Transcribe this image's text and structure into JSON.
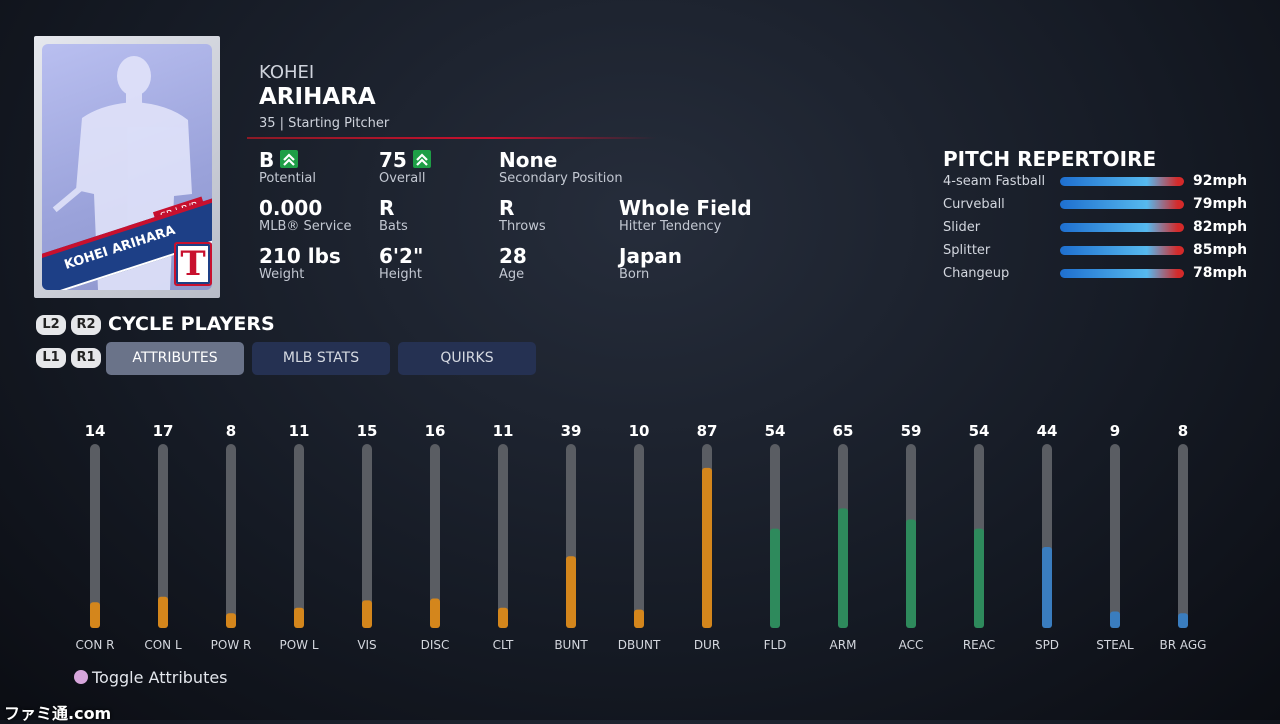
{
  "player": {
    "first_name": "KOHEI",
    "last_name": "ARIHARA",
    "subtitle": "35 | Starting Pitcher"
  },
  "card": {
    "position": "SP | R/R",
    "name": "KOHEI ARIHARA",
    "logo": "T"
  },
  "info": [
    {
      "value": "B",
      "label": "Potential",
      "upgrade": true
    },
    {
      "value": "75",
      "label": "Overall",
      "upgrade": true
    },
    {
      "value": "None",
      "label": "Secondary Position"
    },
    {
      "value": "0.000",
      "label": "MLB® Service"
    },
    {
      "value": "R",
      "label": "Bats"
    },
    {
      "value": "R",
      "label": "Throws"
    },
    {
      "value": "Whole Field",
      "label": "Hitter Tendency"
    },
    {
      "value": "210 lbs",
      "label": "Weight"
    },
    {
      "value": "6'2\"",
      "label": "Height"
    },
    {
      "value": "28",
      "label": "Age"
    },
    {
      "value": "Japan",
      "label": "Born"
    }
  ],
  "pitch_repertoire": {
    "title": "PITCH REPERTOIRE",
    "pitches": [
      {
        "name": "4-seam Fastball",
        "speed": "92mph"
      },
      {
        "name": "Curveball",
        "speed": "79mph"
      },
      {
        "name": "Slider",
        "speed": "82mph"
      },
      {
        "name": "Splitter",
        "speed": "85mph"
      },
      {
        "name": "Changeup",
        "speed": "78mph"
      }
    ]
  },
  "cycle": {
    "buttons": [
      "L2",
      "R2"
    ],
    "label": "CYCLE PLAYERS"
  },
  "tabs": {
    "buttons": [
      "L1",
      "R1"
    ],
    "items": [
      "ATTRIBUTES",
      "MLB STATS",
      "QUIRKS"
    ],
    "active": 0
  },
  "attributes": {
    "max": 100,
    "items": [
      {
        "name": "CON R",
        "value": 14,
        "color": "#d4861c"
      },
      {
        "name": "CON L",
        "value": 17,
        "color": "#d4861c"
      },
      {
        "name": "POW R",
        "value": 8,
        "color": "#d4861c"
      },
      {
        "name": "POW L",
        "value": 11,
        "color": "#d4861c"
      },
      {
        "name": "VIS",
        "value": 15,
        "color": "#d4861c"
      },
      {
        "name": "DISC",
        "value": 16,
        "color": "#d4861c"
      },
      {
        "name": "CLT",
        "value": 11,
        "color": "#d4861c"
      },
      {
        "name": "BUNT",
        "value": 39,
        "color": "#d4861c"
      },
      {
        "name": "DBUNT",
        "value": 10,
        "color": "#d4861c"
      },
      {
        "name": "DUR",
        "value": 87,
        "color": "#d4861c"
      },
      {
        "name": "FLD",
        "value": 54,
        "color": "#2e8a5c"
      },
      {
        "name": "ARM",
        "value": 65,
        "color": "#2e8a5c"
      },
      {
        "name": "ACC",
        "value": 59,
        "color": "#2e8a5c"
      },
      {
        "name": "REAC",
        "value": 54,
        "color": "#2e8a5c"
      },
      {
        "name": "SPD",
        "value": 44,
        "color": "#3a7dbf"
      },
      {
        "name": "STEAL",
        "value": 9,
        "color": "#3a7dbf"
      },
      {
        "name": "BR AGG",
        "value": 8,
        "color": "#3a7dbf"
      }
    ]
  },
  "footer": "Toggle Attributes",
  "watermark": "ファミ通.com"
}
